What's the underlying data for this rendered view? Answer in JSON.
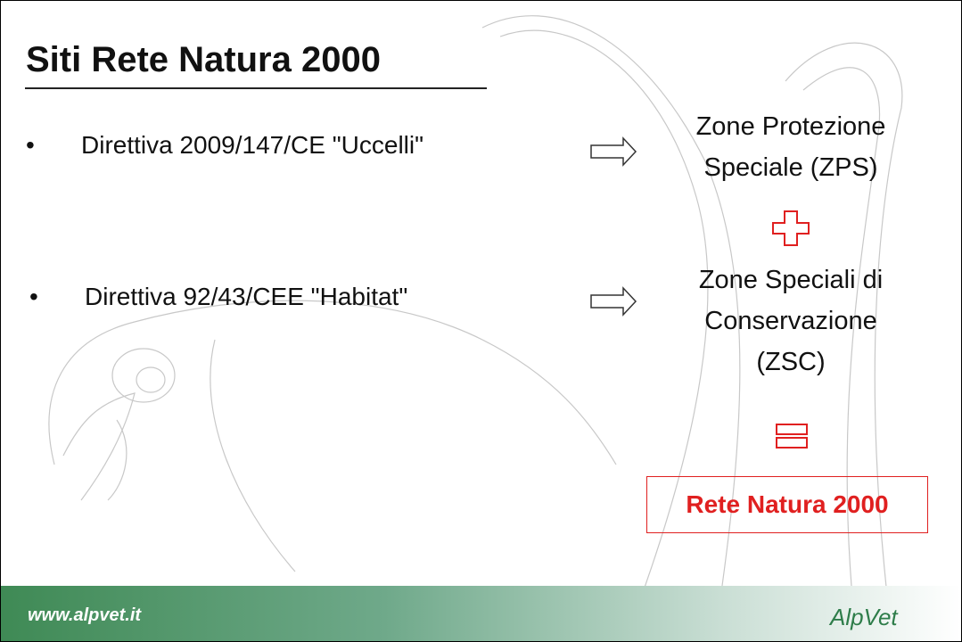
{
  "title": "Siti Rete Natura 2000",
  "bullets": [
    "Direttiva 2009/147/CE \"Uccelli\"",
    "Direttiva 92/43/CEE \"Habitat\""
  ],
  "outcomes": [
    [
      "Zone Protezione",
      "Speciale (ZPS)"
    ],
    [
      "Zone Speciali di",
      "Conservazione",
      "(ZSC)"
    ]
  ],
  "result": "Rete Natura 2000",
  "footer": {
    "url": "www.alpvet.it",
    "logo": "AlpVet"
  }
}
